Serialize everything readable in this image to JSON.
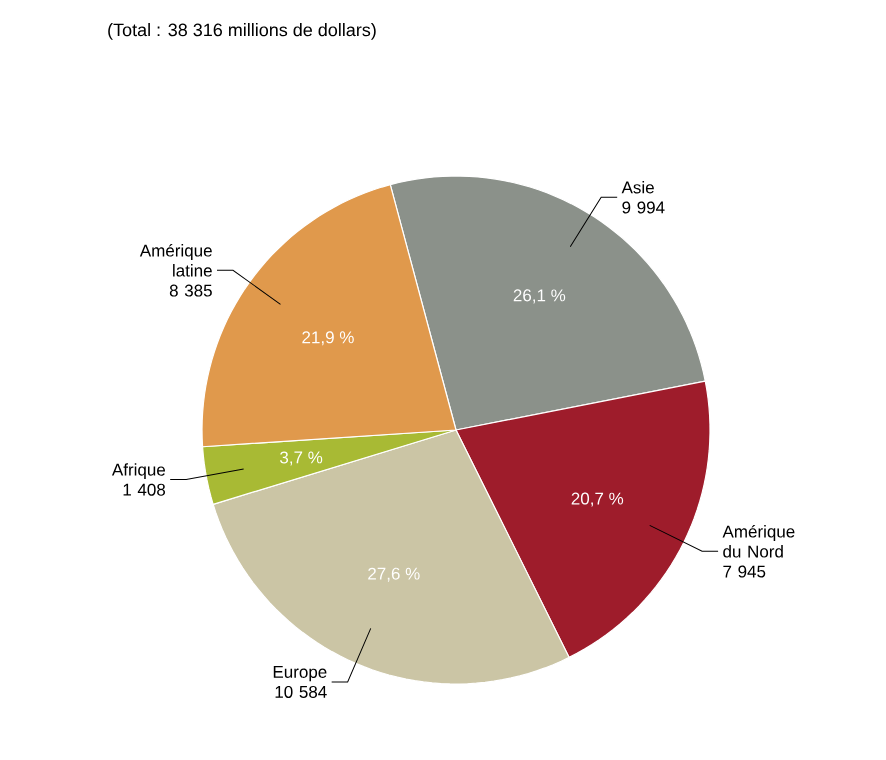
{
  "chart_data": {
    "type": "pie",
    "title": "(Total : 38 316 millions de dollars)",
    "categories": [
      "Asie",
      "Amérique du Nord",
      "Europe",
      "Afrique",
      "Amérique latine"
    ],
    "values": [
      9994,
      7945,
      10584,
      1408,
      8385
    ],
    "value_labels": [
      "9 994",
      "7 945",
      "10 584",
      "1 408",
      "8 385"
    ],
    "colors": [
      "#8b918a",
      "#9e1c2b",
      "#cbc5a5",
      "#a8ba34",
      "#e0994c"
    ],
    "annotations": [
      "26,1 %",
      "20,7 %",
      "27,6 %",
      "3,7 %",
      "21,9 %"
    ]
  }
}
